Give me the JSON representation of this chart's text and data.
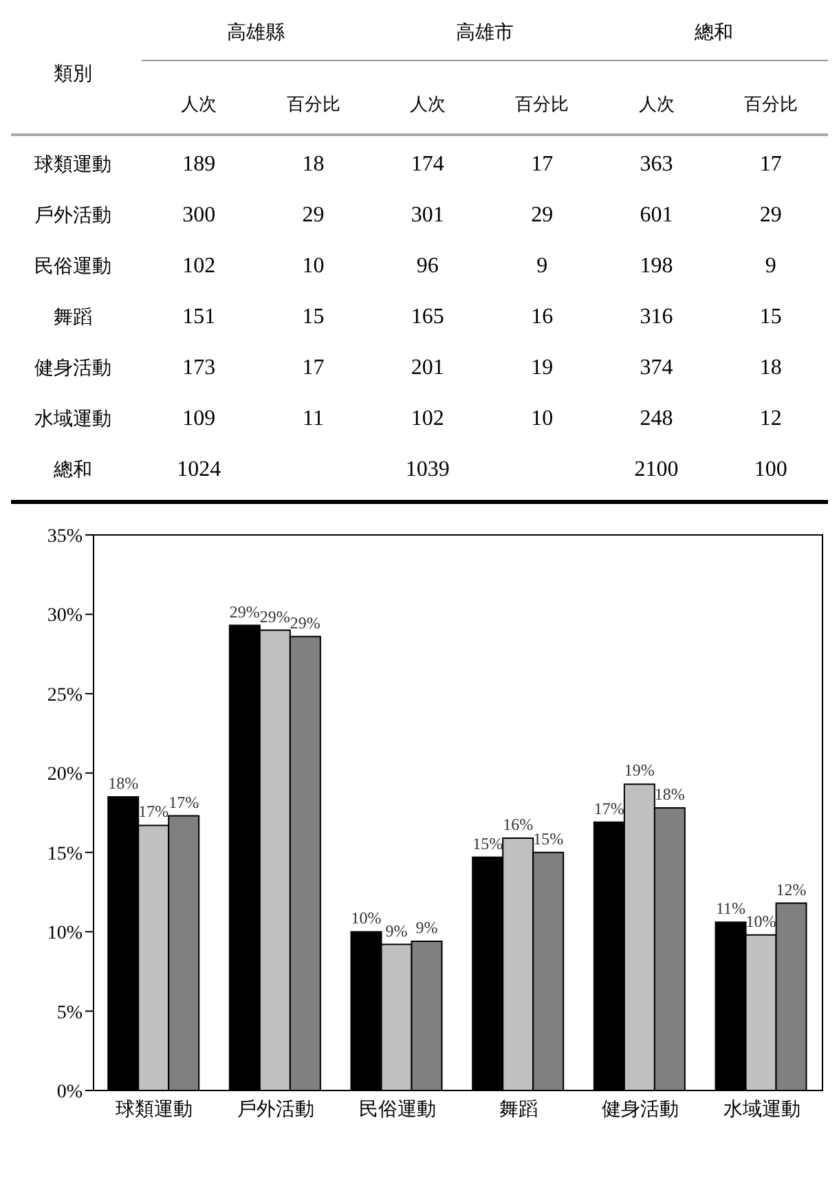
{
  "chart_data": [
    {
      "type": "heatmap",
      "data_labels": true,
      "annotations": [
        "類別",
        "高雄縣",
        "高雄市",
        "總和"
      ],
      "categories": [
        "人次",
        "百分比",
        "人次",
        "百分比",
        "人次",
        "百分比"
      ],
      "y_categories": [
        "球類運動",
        "戶外活動",
        "民俗運動",
        "舞蹈",
        "健身活動",
        "水域運動",
        "總和"
      ],
      "cells": [
        [
          189,
          18,
          174,
          17,
          363,
          17
        ],
        [
          300,
          29,
          301,
          29,
          601,
          29
        ],
        [
          102,
          10,
          96,
          9,
          198,
          9
        ],
        [
          151,
          15,
          165,
          16,
          316,
          15
        ],
        [
          173,
          17,
          201,
          19,
          374,
          18
        ],
        [
          109,
          11,
          102,
          10,
          248,
          12
        ],
        [
          1024,
          null,
          1039,
          null,
          2100,
          100
        ]
      ]
    },
    {
      "type": "bar",
      "categories": [
        "球類運動",
        "戶外活動",
        "民俗運動",
        "舞蹈",
        "健身活動",
        "水域運動"
      ],
      "series": [
        {
          "color": "#000000",
          "values": [
            18.5,
            29.3,
            10.0,
            14.7,
            16.9,
            10.6
          ],
          "value_labels": [
            "18%",
            "29%",
            "10%",
            "15%",
            "17%",
            "11%"
          ]
        },
        {
          "color": "#c0c0c0",
          "values": [
            16.7,
            29.0,
            9.2,
            15.9,
            19.3,
            9.8
          ],
          "value_labels": [
            "17%",
            "29%",
            "9%",
            "16%",
            "19%",
            "10%"
          ]
        },
        {
          "color": "#808080",
          "values": [
            17.3,
            28.6,
            9.4,
            15.0,
            17.8,
            11.8
          ],
          "value_labels": [
            "17%",
            "29%",
            "9%",
            "15%",
            "18%",
            "12%"
          ]
        }
      ],
      "ylim": [
        0,
        35
      ],
      "yticks": [
        {
          "value": 0,
          "label": "0%"
        },
        {
          "value": 5,
          "label": "5%"
        },
        {
          "value": 10,
          "label": "10%"
        },
        {
          "value": 15,
          "label": "15%"
        },
        {
          "value": 20,
          "label": "20%"
        },
        {
          "value": 25,
          "label": "25%"
        },
        {
          "value": 30,
          "label": "30%"
        },
        {
          "value": 35,
          "label": "35%"
        }
      ],
      "grid": false,
      "legend": false
    }
  ]
}
